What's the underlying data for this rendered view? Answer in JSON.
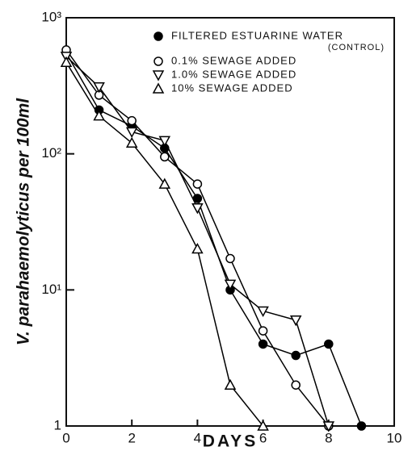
{
  "chart_data": {
    "type": "line",
    "xlabel": "DAYS",
    "ylabel": "V. parahaemolyticus per 100ml",
    "x": [
      0,
      1,
      2,
      3,
      4,
      5,
      6,
      7,
      8,
      9
    ],
    "series": [
      {
        "name": "FILTERED ESTUARINE WATER",
        "note": "(CONTROL)",
        "marker": "filled-circle",
        "color": "#000000",
        "values": [
          550,
          210,
          160,
          110,
          47,
          10,
          4,
          3.3,
          4,
          1
        ]
      },
      {
        "name": "0.1% SEWAGE ADDED",
        "marker": "circle",
        "color": "#000000",
        "values": [
          580,
          270,
          175,
          95,
          60,
          17,
          5,
          2,
          1,
          null
        ]
      },
      {
        "name": "1.0% SEWAGE ADDED",
        "marker": "triangle-down",
        "color": "#000000",
        "values": [
          520,
          310,
          145,
          125,
          40,
          11,
          7,
          6,
          1,
          null
        ]
      },
      {
        "name": "10% SEWAGE ADDED",
        "marker": "triangle-up",
        "color": "#000000",
        "values": [
          470,
          190,
          120,
          60,
          20,
          2,
          1,
          null,
          null,
          null
        ]
      }
    ],
    "xlim": [
      0,
      10
    ],
    "xticks": [
      0,
      2,
      4,
      6,
      8,
      10
    ],
    "ylim": [
      1,
      1000
    ],
    "log_y": true,
    "yticks": [
      1,
      {
        "value": 10,
        "label": "10¹"
      },
      {
        "value": 100,
        "label": "10²"
      },
      {
        "value": 1000,
        "label": "10³"
      }
    ],
    "legend": "upper right"
  }
}
